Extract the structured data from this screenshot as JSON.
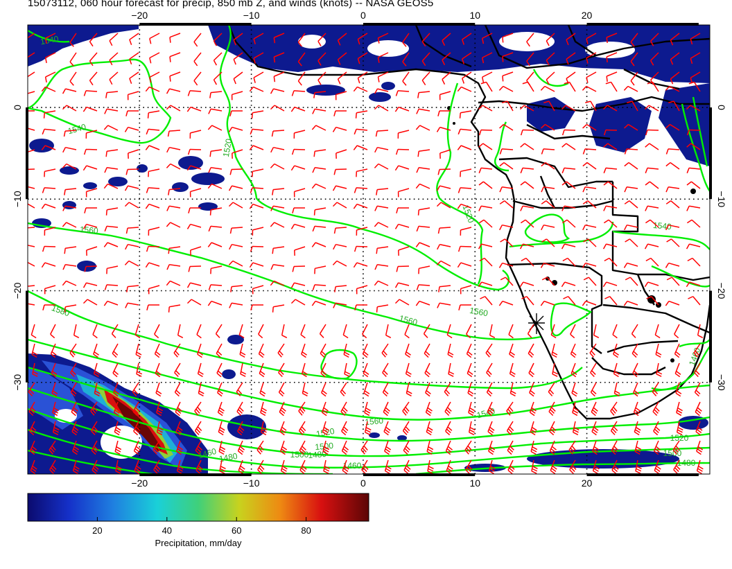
{
  "title": "15073112, 060 hour forecast for precip, 850 mb Z, and winds (knots) -- NASA GEOS5",
  "map": {
    "lon_range": [
      -30,
      31
    ],
    "lat_range": [
      -40,
      9
    ],
    "lon_ticks": [
      -20,
      -10,
      0,
      10,
      20
    ],
    "lon_tick_labels": [
      "−20",
      "−10",
      "0",
      "10",
      "20"
    ],
    "lat_ticks": [
      0,
      -10,
      -20,
      -30
    ],
    "lat_tick_labels": [
      "0",
      "−10",
      "−20",
      "−30"
    ],
    "graticule": "dotted",
    "colors": {
      "contour": "#00ee00",
      "barb": "#ff0000",
      "coast": "#000000",
      "precip_low": "#0a1a8c"
    },
    "contour_labels": [
      "1540",
      "1540",
      "1520",
      "1560",
      "1580",
      "1560",
      "1560",
      "1520",
      "1540",
      "1520",
      "1500",
      "1480",
      "1460",
      "1500",
      "1480",
      "1460",
      "1560",
      "1540",
      "1520",
      "1500",
      "1480",
      "1460"
    ]
  },
  "colorbar": {
    "title": "Precipitation, mm/day",
    "range": [
      0,
      98
    ],
    "tick_values": [
      20,
      40,
      60,
      80
    ],
    "tick_labels": [
      "20",
      "40",
      "60",
      "80"
    ]
  }
}
